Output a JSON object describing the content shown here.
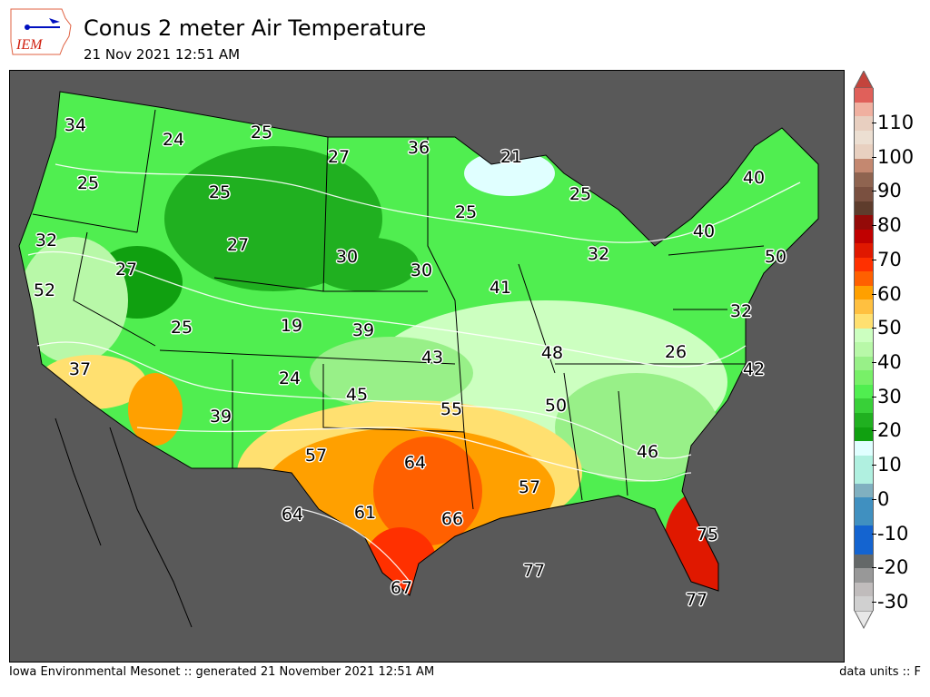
{
  "header": {
    "logo_text": "IEM",
    "title": "Conus 2 meter Air Temperature",
    "subtitle": "21 Nov 2021 12:51 AM"
  },
  "map": {
    "background_color": "#595959",
    "labels": [
      "34",
      "24",
      "25",
      "27",
      "36",
      "21",
      "25",
      "25",
      "25",
      "27",
      "25",
      "40",
      "32",
      "27",
      "30",
      "30",
      "41",
      "32",
      "40",
      "50",
      "52",
      "25",
      "19",
      "39",
      "43",
      "48",
      "26",
      "32",
      "37",
      "24",
      "45",
      "42",
      "39",
      "55",
      "50",
      "57",
      "64",
      "46",
      "57",
      "64",
      "61",
      "66",
      "75",
      "77",
      "67",
      "77"
    ]
  },
  "colorbar": {
    "ticks": [
      "110",
      "100",
      "90",
      "80",
      "70",
      "60",
      "50",
      "40",
      "30",
      "20",
      "10",
      "0",
      "-10",
      "-20",
      "-30"
    ],
    "over_color": "#c4443c",
    "under_color": "#e8e8e8",
    "colors": [
      "#e0605a",
      "#f0b0a0",
      "#e8cfc0",
      "#ecdfd2",
      "#e8d0c0",
      "#c48870",
      "#8f6450",
      "#7a5040",
      "#5e3c2c",
      "#940a08",
      "#c00000",
      "#e01800",
      "#ff3000",
      "#ff6000",
      "#ffa000",
      "#ffc040",
      "#ffe070",
      "#ccffc0",
      "#b8f8a8",
      "#98f088",
      "#78f068",
      "#50ee50",
      "#38d038",
      "#20b020",
      "#10a010",
      "#e0ffff",
      "#b0f0e0",
      "#b0f0e0",
      "#80b0c0",
      "#4090c0",
      "#4090c0",
      "#1464d0",
      "#1464d0",
      "#646868",
      "#989898",
      "#c0bcbc",
      "#d0d0d0"
    ]
  },
  "footer": {
    "left": "Iowa Environmental Mesonet :: generated 21 November 2021 12:51 AM",
    "right": "data units :: F"
  }
}
